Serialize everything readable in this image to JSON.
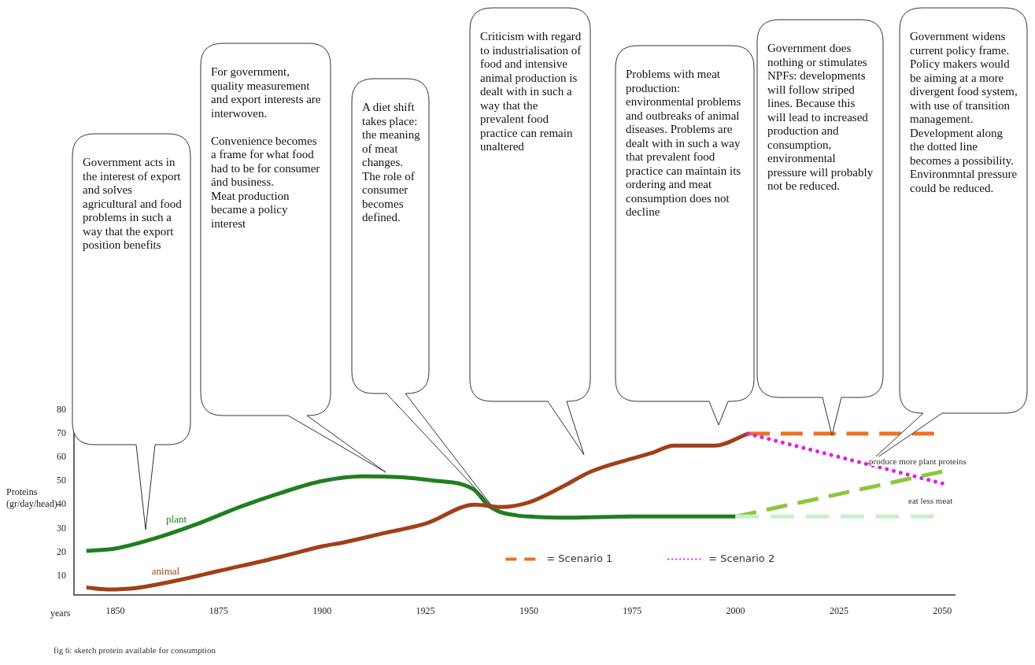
{
  "chart_data": {
    "type": "line",
    "xlabel": "years",
    "ylabel": "Proteins (gr/day/head)",
    "xlim": [
      1840,
      2053
    ],
    "ylim": [
      2,
      82
    ],
    "xticks": [
      1850,
      1875,
      1900,
      1925,
      1950,
      1975,
      2000,
      2025,
      2050
    ],
    "yticks": [
      10,
      20,
      30,
      40,
      50,
      60,
      70,
      80
    ],
    "grid": false,
    "legend": "bottom",
    "marker": "none",
    "series": [
      {
        "name": "plant",
        "color": "#1f7f1f",
        "line_style": "solid",
        "x": [
          1843,
          1850,
          1860,
          1870,
          1880,
          1890,
          1900,
          1910,
          1920,
          1928,
          1933,
          1937,
          1940,
          1943,
          1947,
          1950,
          1960,
          1975,
          2000
        ],
        "values": [
          20.5,
          21.5,
          26,
          32,
          39,
          45,
          50,
          52,
          51.5,
          50,
          49,
          46,
          40,
          37,
          35.5,
          35,
          34.5,
          35,
          35
        ]
      },
      {
        "name": "animal",
        "color": "#a0401a",
        "line_style": "solid",
        "x": [
          1843,
          1848,
          1855,
          1865,
          1875,
          1890,
          1900,
          1905,
          1915,
          1925,
          1937,
          1943,
          1950,
          1958,
          1965,
          1975,
          1980,
          1985,
          1990,
          1995,
          2003
        ],
        "values": [
          5,
          4.2,
          4.8,
          8,
          12,
          18,
          22.4,
          24,
          28,
          32,
          40,
          39,
          41,
          47.5,
          54,
          59.5,
          62,
          65,
          65,
          65,
          70
        ]
      },
      {
        "name": "= Scenario 1",
        "color": "#f07020",
        "line_style": "dashed",
        "x": [
          2003,
          2048
        ],
        "values": [
          70,
          70
        ]
      },
      {
        "name": "= Scenario 2",
        "color": "#e020e0",
        "line_style": "dotted",
        "x": [
          2003,
          2050
        ],
        "values": [
          70,
          49
        ]
      },
      {
        "color": "#8cc63f",
        "line_style": "dashed",
        "x": [
          2000,
          2050
        ],
        "values": [
          35,
          54
        ]
      },
      {
        "color": "#c8efc8",
        "line_style": "dashed",
        "x": [
          2000,
          2048
        ],
        "values": [
          35,
          35
        ]
      }
    ],
    "annotations": [
      "Government acts in the interest of export and solves agricultural and food problems in such a way that the export position benefits",
      "For government, quality measurement and export interests are interwoven.\n\nConvenience becomes a frame for what food had to be for consumer ánd business.\nMeat production became a policy interest",
      "A diet shift takes place: the meaning of meat changes. The role of consumer becomes defined.",
      "Criticism with regard to industrialisation of food and intensive animal production is dealt with in such a way that the prevalent food practice can remain unaltered",
      "Problems with meat production: environmental problems and outbreaks of animal diseases. Problems are dealt with in such a way that prevalent food practice can maintain its ordering and meat consumption does not decline",
      "Government does nothing or stimulates NPFs: developments will follow striped lines. Because this will lead to increased production and consumption, environmental pressure will probably not be reduced.",
      "Government widens current policy frame. Policy makers would be aiming at a more divergent food system, with use of transition management. Development along the dotted line becomes a possibility. Environmntal pressure could be reduced.",
      "produce more plant proteins",
      "eat less meat",
      "fig 6: sketch protein available for consumption"
    ]
  }
}
